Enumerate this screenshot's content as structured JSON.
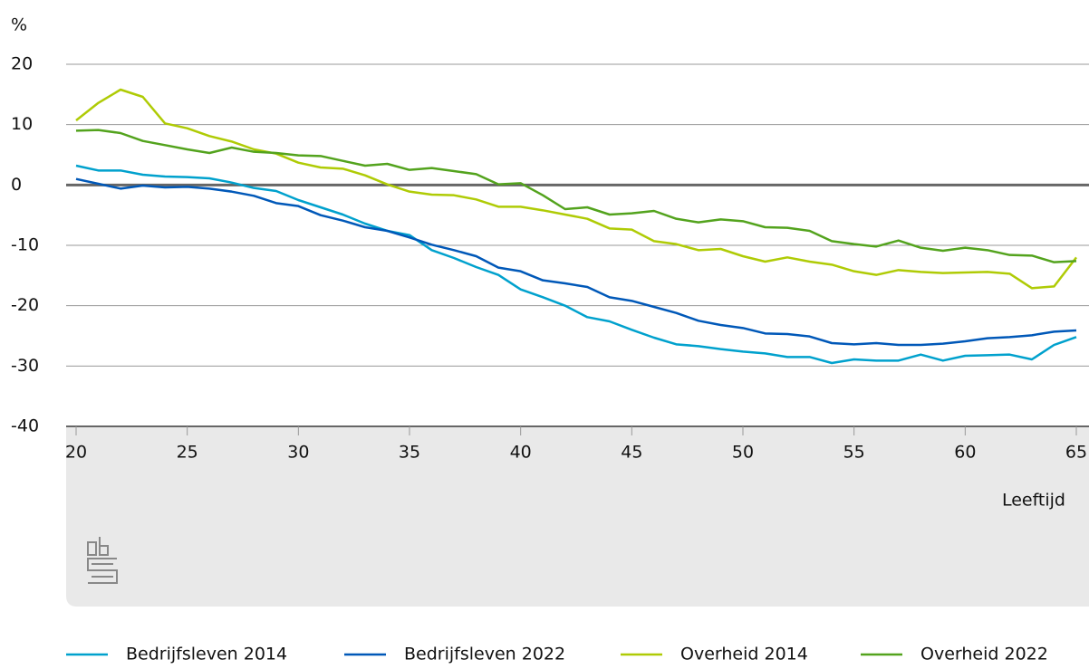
{
  "chart_data": {
    "type": "line",
    "y_label": "%",
    "x_label": "Leeftijd",
    "x": [
      20,
      21,
      22,
      23,
      24,
      25,
      26,
      27,
      28,
      29,
      30,
      31,
      32,
      33,
      34,
      35,
      36,
      37,
      38,
      39,
      40,
      41,
      42,
      43,
      44,
      45,
      46,
      47,
      48,
      49,
      50,
      51,
      52,
      53,
      54,
      55,
      56,
      57,
      58,
      59,
      60,
      61,
      62,
      63,
      64,
      65
    ],
    "xlim": [
      20,
      65
    ],
    "xticks": [
      20,
      25,
      30,
      35,
      40,
      45,
      50,
      55,
      60,
      65
    ],
    "ylim": [
      -40,
      20
    ],
    "yticks": [
      -40,
      -30,
      -20,
      -10,
      0,
      10,
      20
    ],
    "grid": true,
    "series": [
      {
        "name": "Bedrijfsleven 2014",
        "color": "#00a1cd",
        "values": [
          3.2,
          2.4,
          2.4,
          1.7,
          1.4,
          1.3,
          1.1,
          0.4,
          -0.5,
          -1.0,
          -2.5,
          -3.7,
          -4.9,
          -6.4,
          -7.6,
          -8.3,
          -10.8,
          -12.1,
          -13.6,
          -14.9,
          -17.3,
          -18.6,
          -20.0,
          -21.9,
          -22.6,
          -24.0,
          -25.3,
          -26.4,
          -26.7,
          -27.2,
          -27.6,
          -27.9,
          -28.5,
          -28.5,
          -29.5,
          -28.9,
          -29.1,
          -29.1,
          -28.1,
          -29.1,
          -28.3,
          -28.2,
          -28.1,
          -28.9,
          -26.5,
          -25.2
        ]
      },
      {
        "name": "Bedrijfsleven 2022",
        "color": "#0058b8",
        "values": [
          1.0,
          0.2,
          -0.6,
          -0.1,
          -0.4,
          -0.3,
          -0.6,
          -1.1,
          -1.8,
          -3.0,
          -3.5,
          -5.0,
          -5.9,
          -7.0,
          -7.6,
          -8.7,
          -9.9,
          -10.8,
          -11.8,
          -13.7,
          -14.3,
          -15.8,
          -16.3,
          -16.9,
          -18.6,
          -19.2,
          -20.2,
          -21.2,
          -22.5,
          -23.2,
          -23.7,
          -24.6,
          -24.7,
          -25.1,
          -26.2,
          -26.4,
          -26.2,
          -26.5,
          -26.5,
          -26.3,
          -25.9,
          -25.4,
          -25.2,
          -24.9,
          -24.3,
          -24.1
        ]
      },
      {
        "name": "Overheid 2014",
        "color": "#afcb05",
        "values": [
          10.7,
          13.6,
          15.8,
          14.6,
          10.2,
          9.4,
          8.1,
          7.2,
          5.9,
          5.2,
          3.7,
          2.9,
          2.7,
          1.6,
          0.1,
          -1.1,
          -1.6,
          -1.7,
          -2.4,
          -3.6,
          -3.6,
          -4.2,
          -4.9,
          -5.6,
          -7.2,
          -7.4,
          -9.3,
          -9.8,
          -10.8,
          -10.6,
          -11.8,
          -12.7,
          -12.0,
          -12.7,
          -13.2,
          -14.3,
          -14.9,
          -14.1,
          -14.4,
          -14.6,
          -14.5,
          -14.4,
          -14.7,
          -17.1,
          -16.8,
          -12.0
        ]
      },
      {
        "name": "Overheid 2022",
        "color": "#53a31d",
        "values": [
          9.0,
          9.1,
          8.6,
          7.3,
          6.6,
          5.9,
          5.3,
          6.2,
          5.5,
          5.3,
          4.9,
          4.8,
          4.0,
          3.2,
          3.5,
          2.5,
          2.8,
          2.3,
          1.8,
          0.1,
          0.3,
          -1.7,
          -4.0,
          -3.7,
          -4.9,
          -4.7,
          -4.3,
          -5.6,
          -6.2,
          -5.7,
          -6.0,
          -7.0,
          -7.1,
          -7.6,
          -9.3,
          -9.8,
          -10.2,
          -9.2,
          -10.4,
          -10.9,
          -10.4,
          -10.8,
          -11.6,
          -11.7,
          -12.8,
          -12.6
        ]
      }
    ]
  }
}
